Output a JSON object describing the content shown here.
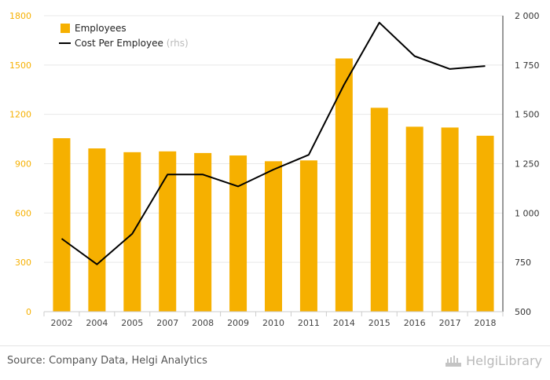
{
  "chart_data": {
    "type": "bar",
    "categories": [
      "2002",
      "2004",
      "2005",
      "2007",
      "2008",
      "2009",
      "2010",
      "2011",
      "2014",
      "2015",
      "2016",
      "2017",
      "2018"
    ],
    "series": [
      {
        "name": "Employees",
        "axis": "left",
        "kind": "bar",
        "color": "#F6B000",
        "values": [
          1055,
          993,
          970,
          975,
          965,
          950,
          915,
          920,
          1540,
          1240,
          1125,
          1120,
          1070
        ]
      },
      {
        "name": "Cost Per Employee",
        "axis": "right",
        "kind": "line",
        "color": "#000000",
        "values": [
          870,
          740,
          895,
          1195,
          1195,
          1135,
          1220,
          1295,
          1650,
          1965,
          1795,
          1730,
          1745
        ]
      }
    ],
    "y_left": {
      "min": 0,
      "max": 1800,
      "ticks": [
        0,
        300,
        600,
        900,
        1200,
        1500,
        1800
      ]
    },
    "y_right": {
      "min": 500,
      "max": 2000,
      "ticks": [
        500,
        750,
        1000,
        1250,
        1500,
        1750,
        2000
      ],
      "tick_labels": [
        "500",
        "750",
        "1 000",
        "1 250",
        "1 500",
        "1 750",
        "2 000"
      ]
    },
    "legend": {
      "position": "top-left",
      "items": [
        {
          "label": "Employees",
          "suffix": ""
        },
        {
          "label": "Cost Per Employee",
          "suffix": "(rhs)"
        }
      ]
    },
    "colors": {
      "bar": "#F6B000",
      "line": "#000000",
      "left_axis_text": "#F6B000",
      "grid": "#e8e8e8"
    }
  },
  "footer": {
    "source": "Source: Company Data, Helgi Analytics",
    "brand": "HelgiLibrary"
  }
}
